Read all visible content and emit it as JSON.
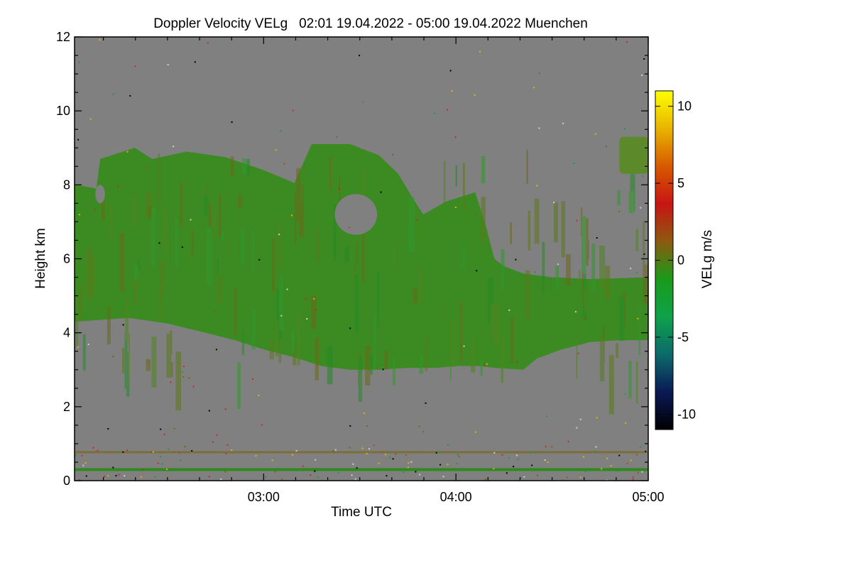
{
  "chart_data": {
    "type": "heatmap",
    "title": "Doppler Velocity VELg   02:01 19.04.2022 - 05:00 19.04.2022 Muenchen",
    "xlabel": "Time UTC",
    "ylabel": "Height km",
    "x_range_hours": [
      2.0167,
      5.0
    ],
    "x_ticks": [
      {
        "value": 3.0,
        "label": "03:00"
      },
      {
        "value": 4.0,
        "label": "04:00"
      },
      {
        "value": 5.0,
        "label": "05:00"
      }
    ],
    "ylim": [
      0,
      12
    ],
    "y_ticks": [
      {
        "value": 0,
        "label": "0"
      },
      {
        "value": 2,
        "label": "2"
      },
      {
        "value": 4,
        "label": "4"
      },
      {
        "value": 6,
        "label": "6"
      },
      {
        "value": 8,
        "label": "8"
      },
      {
        "value": 10,
        "label": "10"
      },
      {
        "value": 12,
        "label": "12"
      }
    ],
    "colorbar": {
      "label": "VELg m/s",
      "range": [
        -11,
        11
      ],
      "ticks": [
        {
          "value": 10,
          "label": "10"
        },
        {
          "value": 5,
          "label": "5"
        },
        {
          "value": 0,
          "label": "0"
        },
        {
          "value": -5,
          "label": "-5"
        },
        {
          "value": -10,
          "label": "-10"
        }
      ],
      "colors": [
        "#000000",
        "#0a1a55",
        "#0c6a6a",
        "#0ea24a",
        "#1a9a1a",
        "#8c5a10",
        "#c81414",
        "#d65a00",
        "#e8b400",
        "#ffff00"
      ]
    },
    "background_color": "#808080",
    "cloud_layer": {
      "mean_velocity_ms": -1,
      "top_km": [
        [
          2.02,
          8.0
        ],
        [
          2.13,
          7.9
        ],
        [
          2.15,
          8.7
        ],
        [
          2.33,
          9.0
        ],
        [
          2.42,
          8.7
        ],
        [
          2.6,
          8.9
        ],
        [
          2.8,
          8.75
        ],
        [
          3.0,
          8.4
        ],
        [
          3.16,
          8.05
        ],
        [
          3.25,
          9.1
        ],
        [
          3.45,
          9.1
        ],
        [
          3.6,
          8.8
        ],
        [
          3.7,
          8.3
        ],
        [
          3.78,
          7.6
        ],
        [
          3.83,
          7.2
        ],
        [
          3.95,
          7.55
        ],
        [
          4.1,
          7.8
        ],
        [
          4.15,
          7.0
        ],
        [
          4.2,
          6.0
        ],
        [
          4.25,
          5.8
        ],
        [
          4.35,
          5.6
        ],
        [
          4.5,
          5.5
        ],
        [
          4.7,
          5.45
        ],
        [
          5.0,
          5.5
        ]
      ],
      "base_km": [
        [
          2.02,
          4.3
        ],
        [
          2.3,
          4.4
        ],
        [
          2.5,
          4.25
        ],
        [
          2.7,
          4.0
        ],
        [
          2.85,
          3.8
        ],
        [
          3.0,
          3.55
        ],
        [
          3.15,
          3.35
        ],
        [
          3.3,
          3.1
        ],
        [
          3.45,
          3.0
        ],
        [
          3.6,
          3.0
        ],
        [
          3.75,
          3.05
        ],
        [
          3.9,
          3.05
        ],
        [
          4.0,
          3.1
        ],
        [
          4.12,
          3.1
        ],
        [
          4.2,
          3.05
        ],
        [
          4.35,
          3.0
        ],
        [
          4.42,
          3.3
        ],
        [
          4.55,
          3.55
        ],
        [
          4.7,
          3.75
        ],
        [
          4.85,
          3.8
        ],
        [
          5.0,
          3.8
        ]
      ],
      "gaps": [
        {
          "center_hours": 3.48,
          "center_km": 7.2,
          "width_hours": 0.22,
          "height_km": 1.1
        },
        {
          "center_hours": 2.15,
          "center_km": 7.75,
          "width_hours": 0.05,
          "height_km": 0.5
        }
      ]
    },
    "upper_right_cloud": {
      "hours": [
        4.85,
        5.0
      ],
      "km": [
        8.3,
        9.3
      ]
    },
    "near_surface_layers_km": [
      0.3,
      0.78
    ]
  }
}
